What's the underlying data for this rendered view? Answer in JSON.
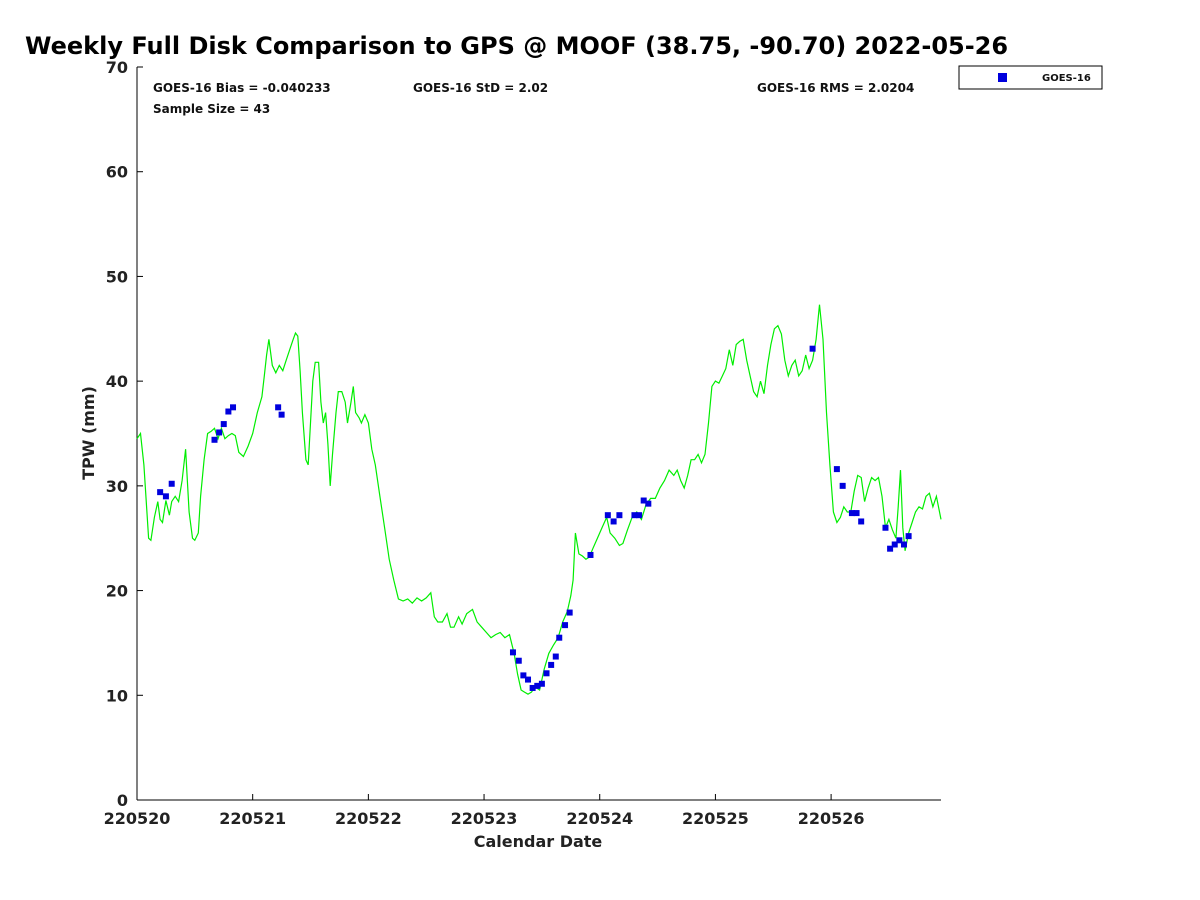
{
  "chart_data": {
    "type": "scatter",
    "title": "Weekly Full Disk Comparison to GPS @ MOOF (38.75, -90.70) 2022-05-26",
    "xlabel": "Calendar Date",
    "ylabel": "TPW (mm)",
    "xlim": [
      0,
      6.95
    ],
    "ylim": [
      0,
      70
    ],
    "x_ticks": [
      {
        "value": 0,
        "label": "220520"
      },
      {
        "value": 1,
        "label": "220521"
      },
      {
        "value": 2,
        "label": "220522"
      },
      {
        "value": 3,
        "label": "220523"
      },
      {
        "value": 4,
        "label": "220524"
      },
      {
        "value": 5,
        "label": "220525"
      },
      {
        "value": 6,
        "label": "220526"
      }
    ],
    "y_ticks": [
      0,
      10,
      20,
      30,
      40,
      50,
      60,
      70
    ],
    "grid": false,
    "legend_position": "top-right",
    "stats": {
      "bias": "GOES-16 Bias = -0.040233",
      "std": "GOES-16 StD = 2.02",
      "rms": "GOES-16 RMS = 2.0204",
      "sample": "Sample Size = 43"
    },
    "colors": {
      "gps_line": "#00ee00",
      "goes_points": "#0000dd"
    },
    "series": [
      {
        "name": "GOES-16",
        "kind": "scatter",
        "points": [
          [
            0.2,
            29.4
          ],
          [
            0.25,
            29.0
          ],
          [
            0.3,
            30.2
          ],
          [
            0.67,
            34.4
          ],
          [
            0.71,
            35.1
          ],
          [
            0.75,
            35.9
          ],
          [
            0.79,
            37.1
          ],
          [
            0.83,
            37.5
          ],
          [
            1.22,
            37.5
          ],
          [
            1.25,
            36.8
          ],
          [
            3.25,
            14.1
          ],
          [
            3.3,
            13.3
          ],
          [
            3.34,
            11.9
          ],
          [
            3.38,
            11.5
          ],
          [
            3.42,
            10.7
          ],
          [
            3.46,
            10.9
          ],
          [
            3.5,
            11.1
          ],
          [
            3.54,
            12.1
          ],
          [
            3.58,
            12.9
          ],
          [
            3.62,
            13.7
          ],
          [
            3.65,
            15.5
          ],
          [
            3.7,
            16.7
          ],
          [
            3.74,
            17.9
          ],
          [
            3.92,
            23.4
          ],
          [
            4.07,
            27.2
          ],
          [
            4.12,
            26.6
          ],
          [
            4.17,
            27.2
          ],
          [
            4.3,
            27.2
          ],
          [
            4.34,
            27.2
          ],
          [
            4.38,
            28.6
          ],
          [
            4.42,
            28.3
          ],
          [
            5.84,
            43.1
          ],
          [
            6.05,
            31.6
          ],
          [
            6.1,
            30.0
          ],
          [
            6.18,
            27.4
          ],
          [
            6.22,
            27.4
          ],
          [
            6.26,
            26.6
          ],
          [
            6.47,
            26.0
          ],
          [
            6.51,
            24.0
          ],
          [
            6.55,
            24.4
          ],
          [
            6.59,
            24.8
          ],
          [
            6.63,
            24.4
          ],
          [
            6.67,
            25.2
          ]
        ]
      },
      {
        "kind": "line",
        "points": [
          [
            0.0,
            34.5
          ],
          [
            0.03,
            35.0
          ],
          [
            0.06,
            32.0
          ],
          [
            0.1,
            25.0
          ],
          [
            0.12,
            24.8
          ],
          [
            0.15,
            27.0
          ],
          [
            0.18,
            28.5
          ],
          [
            0.2,
            26.8
          ],
          [
            0.22,
            26.5
          ],
          [
            0.25,
            28.6
          ],
          [
            0.28,
            27.2
          ],
          [
            0.3,
            28.5
          ],
          [
            0.33,
            29.0
          ],
          [
            0.36,
            28.5
          ],
          [
            0.39,
            30.5
          ],
          [
            0.42,
            33.5
          ],
          [
            0.45,
            27.5
          ],
          [
            0.48,
            25.0
          ],
          [
            0.5,
            24.8
          ],
          [
            0.53,
            25.5
          ],
          [
            0.55,
            29.0
          ],
          [
            0.58,
            32.5
          ],
          [
            0.61,
            35.0
          ],
          [
            0.64,
            35.2
          ],
          [
            0.67,
            35.5
          ],
          [
            0.7,
            34.5
          ],
          [
            0.73,
            35.5
          ],
          [
            0.76,
            34.5
          ],
          [
            0.79,
            34.8
          ],
          [
            0.82,
            35.0
          ],
          [
            0.85,
            34.8
          ],
          [
            0.88,
            33.2
          ],
          [
            0.92,
            32.8
          ],
          [
            0.96,
            33.8
          ],
          [
            1.0,
            35.0
          ],
          [
            1.04,
            37.0
          ],
          [
            1.08,
            38.5
          ],
          [
            1.1,
            40.5
          ],
          [
            1.12,
            42.5
          ],
          [
            1.14,
            44.0
          ],
          [
            1.17,
            41.5
          ],
          [
            1.2,
            40.8
          ],
          [
            1.23,
            41.5
          ],
          [
            1.26,
            41.0
          ],
          [
            1.29,
            42.0
          ],
          [
            1.32,
            43.0
          ],
          [
            1.35,
            44.0
          ],
          [
            1.37,
            44.6
          ],
          [
            1.39,
            44.3
          ],
          [
            1.41,
            41.0
          ],
          [
            1.43,
            37.0
          ],
          [
            1.46,
            32.5
          ],
          [
            1.48,
            32.0
          ],
          [
            1.5,
            36.0
          ],
          [
            1.52,
            40.0
          ],
          [
            1.54,
            41.8
          ],
          [
            1.57,
            41.8
          ],
          [
            1.59,
            38.0
          ],
          [
            1.61,
            36.0
          ],
          [
            1.63,
            37.0
          ],
          [
            1.65,
            34.0
          ],
          [
            1.67,
            30.0
          ],
          [
            1.69,
            33.0
          ],
          [
            1.72,
            37.0
          ],
          [
            1.74,
            39.0
          ],
          [
            1.77,
            39.0
          ],
          [
            1.8,
            38.0
          ],
          [
            1.82,
            36.0
          ],
          [
            1.85,
            38.0
          ],
          [
            1.87,
            39.5
          ],
          [
            1.89,
            37.0
          ],
          [
            1.92,
            36.5
          ],
          [
            1.94,
            36.0
          ],
          [
            1.97,
            36.8
          ],
          [
            2.0,
            36.0
          ],
          [
            2.03,
            33.5
          ],
          [
            2.06,
            32.0
          ],
          [
            2.1,
            29.0
          ],
          [
            2.14,
            26.0
          ],
          [
            2.18,
            23.0
          ],
          [
            2.22,
            21.0
          ],
          [
            2.26,
            19.2
          ],
          [
            2.3,
            19.0
          ],
          [
            2.34,
            19.2
          ],
          [
            2.38,
            18.8
          ],
          [
            2.42,
            19.3
          ],
          [
            2.46,
            19.0
          ],
          [
            2.5,
            19.3
          ],
          [
            2.54,
            19.8
          ],
          [
            2.57,
            17.5
          ],
          [
            2.6,
            17.0
          ],
          [
            2.64,
            17.0
          ],
          [
            2.68,
            17.8
          ],
          [
            2.71,
            16.5
          ],
          [
            2.74,
            16.5
          ],
          [
            2.78,
            17.5
          ],
          [
            2.81,
            16.8
          ],
          [
            2.85,
            17.8
          ],
          [
            2.9,
            18.2
          ],
          [
            2.94,
            17.0
          ],
          [
            2.98,
            16.5
          ],
          [
            3.02,
            16.0
          ],
          [
            3.06,
            15.5
          ],
          [
            3.1,
            15.8
          ],
          [
            3.14,
            16.0
          ],
          [
            3.18,
            15.5
          ],
          [
            3.22,
            15.8
          ],
          [
            3.26,
            14.0
          ],
          [
            3.29,
            12.0
          ],
          [
            3.32,
            10.5
          ],
          [
            3.35,
            10.3
          ],
          [
            3.38,
            10.1
          ],
          [
            3.41,
            10.3
          ],
          [
            3.44,
            10.8
          ],
          [
            3.48,
            10.5
          ],
          [
            3.52,
            12.5
          ],
          [
            3.56,
            14.0
          ],
          [
            3.6,
            14.8
          ],
          [
            3.64,
            15.5
          ],
          [
            3.68,
            17.0
          ],
          [
            3.72,
            18.0
          ],
          [
            3.75,
            19.5
          ],
          [
            3.77,
            21.0
          ],
          [
            3.79,
            25.5
          ],
          [
            3.82,
            23.5
          ],
          [
            3.85,
            23.3
          ],
          [
            3.88,
            23.0
          ],
          [
            3.91,
            23.2
          ],
          [
            3.94,
            24.0
          ],
          [
            3.98,
            25.0
          ],
          [
            4.02,
            26.0
          ],
          [
            4.06,
            27.0
          ],
          [
            4.09,
            25.5
          ],
          [
            4.13,
            25.0
          ],
          [
            4.17,
            24.3
          ],
          [
            4.2,
            24.5
          ],
          [
            4.24,
            25.8
          ],
          [
            4.28,
            27.0
          ],
          [
            4.32,
            27.5
          ],
          [
            4.36,
            26.8
          ],
          [
            4.4,
            28.2
          ],
          [
            4.44,
            28.8
          ],
          [
            4.48,
            28.8
          ],
          [
            4.52,
            29.8
          ],
          [
            4.56,
            30.5
          ],
          [
            4.6,
            31.5
          ],
          [
            4.64,
            31.0
          ],
          [
            4.67,
            31.5
          ],
          [
            4.7,
            30.5
          ],
          [
            4.73,
            29.8
          ],
          [
            4.76,
            31.0
          ],
          [
            4.79,
            32.5
          ],
          [
            4.82,
            32.5
          ],
          [
            4.85,
            33.0
          ],
          [
            4.88,
            32.2
          ],
          [
            4.91,
            33.0
          ],
          [
            4.94,
            36.0
          ],
          [
            4.97,
            39.5
          ],
          [
            5.0,
            40.0
          ],
          [
            5.03,
            39.8
          ],
          [
            5.06,
            40.5
          ],
          [
            5.09,
            41.2
          ],
          [
            5.12,
            43.0
          ],
          [
            5.15,
            41.5
          ],
          [
            5.18,
            43.5
          ],
          [
            5.21,
            43.8
          ],
          [
            5.24,
            44.0
          ],
          [
            5.27,
            42.0
          ],
          [
            5.3,
            40.5
          ],
          [
            5.33,
            39.0
          ],
          [
            5.36,
            38.5
          ],
          [
            5.39,
            40.0
          ],
          [
            5.42,
            38.8
          ],
          [
            5.45,
            41.5
          ],
          [
            5.48,
            43.5
          ],
          [
            5.51,
            45.0
          ],
          [
            5.54,
            45.3
          ],
          [
            5.57,
            44.5
          ],
          [
            5.6,
            42.0
          ],
          [
            5.63,
            40.5
          ],
          [
            5.66,
            41.5
          ],
          [
            5.69,
            42.0
          ],
          [
            5.72,
            40.5
          ],
          [
            5.75,
            41.0
          ],
          [
            5.78,
            42.5
          ],
          [
            5.81,
            41.2
          ],
          [
            5.84,
            42.0
          ],
          [
            5.87,
            44.0
          ],
          [
            5.9,
            47.3
          ],
          [
            5.93,
            44.0
          ],
          [
            5.96,
            37.0
          ],
          [
            5.99,
            32.0
          ],
          [
            6.02,
            27.5
          ],
          [
            6.05,
            26.5
          ],
          [
            6.08,
            27.0
          ],
          [
            6.11,
            28.0
          ],
          [
            6.14,
            27.5
          ],
          [
            6.17,
            27.5
          ],
          [
            6.2,
            29.5
          ],
          [
            6.23,
            31.0
          ],
          [
            6.26,
            30.8
          ],
          [
            6.29,
            28.5
          ],
          [
            6.32,
            29.8
          ],
          [
            6.35,
            30.8
          ],
          [
            6.38,
            30.5
          ],
          [
            6.41,
            30.8
          ],
          [
            6.44,
            29.0
          ],
          [
            6.47,
            26.0
          ],
          [
            6.5,
            26.8
          ],
          [
            6.53,
            25.8
          ],
          [
            6.56,
            25.0
          ],
          [
            6.58,
            28.0
          ],
          [
            6.6,
            31.5
          ],
          [
            6.62,
            26.0
          ],
          [
            6.64,
            23.8
          ],
          [
            6.67,
            25.5
          ],
          [
            6.7,
            26.5
          ],
          [
            6.73,
            27.5
          ],
          [
            6.76,
            28.0
          ],
          [
            6.79,
            27.8
          ],
          [
            6.82,
            29.0
          ],
          [
            6.85,
            29.3
          ],
          [
            6.88,
            28.0
          ],
          [
            6.91,
            29.0
          ],
          [
            6.95,
            26.8
          ]
        ]
      }
    ]
  }
}
